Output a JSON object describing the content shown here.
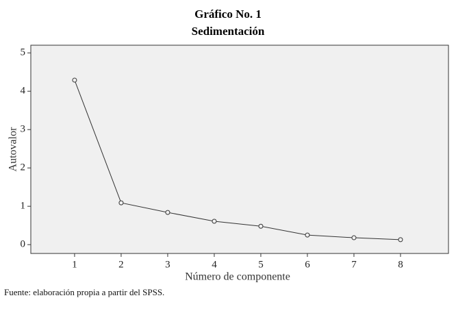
{
  "chart_data": {
    "type": "line",
    "title": "Gráfico No. 1",
    "subtitle": "Sedimentación",
    "x_label": "Número de componente",
    "y_label": "Autovalor",
    "source": "Fuente: elaboración propia a partir del SPSS.",
    "x": [
      1,
      2,
      3,
      4,
      5,
      6,
      7,
      8
    ],
    "series": [
      {
        "color": "#333333",
        "values": [
          4.29,
          1.09,
          0.84,
          0.61,
          0.48,
          0.25,
          0.18,
          0.13
        ]
      }
    ],
    "xlim": [
      0.06,
      9.03
    ],
    "xticks": [
      1,
      2,
      3,
      4,
      5,
      6,
      7,
      8
    ],
    "ylim": [
      -0.23,
      5.2
    ],
    "yticks": [
      0,
      1,
      2,
      3,
      4,
      5
    ],
    "grid": false,
    "background": "#f0f0f0"
  }
}
